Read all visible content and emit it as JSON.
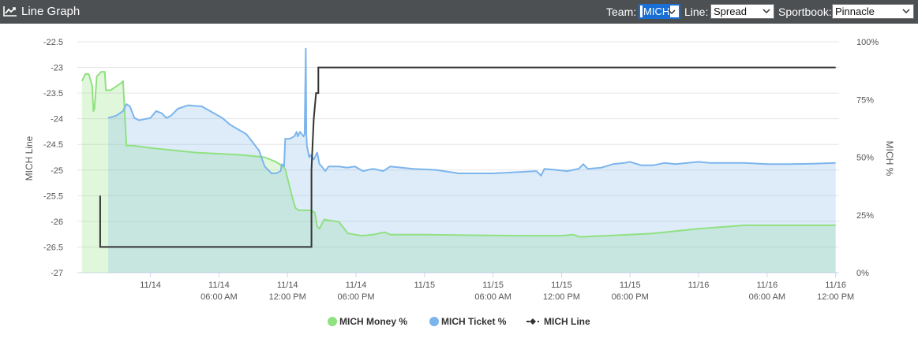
{
  "header": {
    "title": "Line Graph",
    "team_label": "Team:",
    "team_value": "MICH",
    "line_label": "Line:",
    "line_value": "Spread",
    "sportbook_label": "Sportbook:",
    "sportbook_value": "Pinnacle"
  },
  "colors": {
    "header_bg": "#4d5053",
    "money": "#90e180",
    "ticket": "#7cb5ec",
    "line": "#333333"
  },
  "chart_data": {
    "type": "line",
    "title": "",
    "ylabel_left": "MICH Line",
    "ylabel_right": "MICH %",
    "ylim_left": [
      -27,
      -22.5
    ],
    "ylim_right": [
      0,
      100
    ],
    "left_ticks": [
      "-22.5",
      "-23",
      "-23.5",
      "-24",
      "-24.5",
      "-25",
      "-25.5",
      "-26",
      "-26.5",
      "-27"
    ],
    "right_ticks": [
      "100%",
      "75%",
      "50%",
      "25%",
      "0%"
    ],
    "x_ticks": [
      {
        "line1": "11/14",
        "line2": "",
        "t": 6
      },
      {
        "line1": "11/14",
        "line2": "06:00 AM",
        "t": 12
      },
      {
        "line1": "11/14",
        "line2": "12:00 PM",
        "t": 18
      },
      {
        "line1": "11/14",
        "line2": "06:00 PM",
        "t": 24
      },
      {
        "line1": "11/15",
        "line2": "",
        "t": 30
      },
      {
        "line1": "11/15",
        "line2": "06:00 AM",
        "t": 36
      },
      {
        "line1": "11/15",
        "line2": "12:00 PM",
        "t": 42
      },
      {
        "line1": "11/15",
        "line2": "06:00 PM",
        "t": 48
      },
      {
        "line1": "11/16",
        "line2": "",
        "t": 54
      },
      {
        "line1": "11/16",
        "line2": "06:00 AM",
        "t": 60
      },
      {
        "line1": "11/16",
        "line2": "12:00 PM",
        "t": 66
      }
    ],
    "xlim": [
      -0.4,
      66.3
    ],
    "grid": true,
    "legend_position": "bottom-center",
    "series": [
      {
        "name": "MICH Money %",
        "axis": "right",
        "style": "area",
        "points": [
          [
            0.0,
            83
          ],
          [
            0.3,
            86
          ],
          [
            0.6,
            86
          ],
          [
            0.9,
            81
          ],
          [
            1.0,
            70
          ],
          [
            1.1,
            71
          ],
          [
            1.3,
            85
          ],
          [
            1.7,
            87
          ],
          [
            2.0,
            87
          ],
          [
            2.1,
            79
          ],
          [
            2.5,
            79
          ],
          [
            3.4,
            82
          ],
          [
            3.6,
            83
          ],
          [
            3.9,
            55
          ],
          [
            4.5,
            55
          ],
          [
            6,
            54
          ],
          [
            10,
            52
          ],
          [
            14,
            51
          ],
          [
            16,
            50
          ],
          [
            17,
            48
          ],
          [
            17.6,
            46
          ],
          [
            17.8,
            45
          ],
          [
            18.4,
            33
          ],
          [
            18.7,
            28
          ],
          [
            19,
            27
          ],
          [
            20,
            27
          ],
          [
            20.4,
            26
          ],
          [
            20.6,
            20
          ],
          [
            20.8,
            19
          ],
          [
            21.2,
            23
          ],
          [
            22.5,
            22
          ],
          [
            23.3,
            17
          ],
          [
            24.5,
            16
          ],
          [
            25.5,
            16.5
          ],
          [
            26.5,
            17.5
          ],
          [
            27,
            16.5
          ],
          [
            30,
            16.5
          ],
          [
            34,
            16.2
          ],
          [
            38,
            16
          ],
          [
            42,
            16
          ],
          [
            43,
            16.5
          ],
          [
            43.6,
            15.5
          ],
          [
            46,
            16
          ],
          [
            50,
            17
          ],
          [
            54,
            19
          ],
          [
            58,
            20.5
          ],
          [
            62,
            20.5
          ],
          [
            66,
            20.5
          ]
        ]
      },
      {
        "name": "MICH Ticket %",
        "axis": "right",
        "style": "area",
        "points": [
          [
            2.3,
            67
          ],
          [
            3,
            68
          ],
          [
            3.6,
            70
          ],
          [
            3.9,
            73
          ],
          [
            4.2,
            72
          ],
          [
            4.6,
            67
          ],
          [
            5,
            66
          ],
          [
            6,
            67
          ],
          [
            6.5,
            70
          ],
          [
            7,
            69
          ],
          [
            7.4,
            67
          ],
          [
            7.8,
            68
          ],
          [
            8.4,
            71
          ],
          [
            9.3,
            72.5
          ],
          [
            10.5,
            72
          ],
          [
            12.3,
            67
          ],
          [
            13,
            64
          ],
          [
            14.4,
            60
          ],
          [
            15.5,
            53
          ],
          [
            16,
            46
          ],
          [
            16.6,
            43
          ],
          [
            17,
            43
          ],
          [
            17.4,
            44
          ],
          [
            17.5,
            47
          ],
          [
            17.7,
            46
          ],
          [
            17.8,
            58
          ],
          [
            18.2,
            58
          ],
          [
            18.6,
            59
          ],
          [
            18.8,
            61
          ],
          [
            18.9,
            59
          ],
          [
            19.1,
            61
          ],
          [
            19.4,
            59
          ],
          [
            19.5,
            60
          ],
          [
            19.6,
            97
          ],
          [
            19.65,
            60
          ],
          [
            19.7,
            55
          ],
          [
            19.9,
            50
          ],
          [
            20,
            51
          ],
          [
            20.3,
            49
          ],
          [
            20.6,
            52
          ],
          [
            20.8,
            47
          ],
          [
            21,
            46
          ],
          [
            21.3,
            44
          ],
          [
            21.6,
            46
          ],
          [
            22.5,
            46
          ],
          [
            23.2,
            45.5
          ],
          [
            23.9,
            46
          ],
          [
            24.6,
            44
          ],
          [
            25.5,
            45
          ],
          [
            26.4,
            44
          ],
          [
            27,
            46
          ],
          [
            28,
            45.5
          ],
          [
            29,
            45
          ],
          [
            31,
            44.5
          ],
          [
            33,
            43
          ],
          [
            36,
            43
          ],
          [
            38,
            43.5
          ],
          [
            39.8,
            44
          ],
          [
            40.2,
            42
          ],
          [
            40.5,
            45
          ],
          [
            41.5,
            44.5
          ],
          [
            42.5,
            44
          ],
          [
            43.5,
            45
          ],
          [
            43.9,
            47
          ],
          [
            44.3,
            45
          ],
          [
            45.5,
            45.5
          ],
          [
            46.5,
            47
          ],
          [
            47.5,
            47.5
          ],
          [
            48,
            48
          ],
          [
            49,
            46.5
          ],
          [
            50,
            46.5
          ],
          [
            51,
            47.5
          ],
          [
            52,
            47
          ],
          [
            53,
            47.5
          ],
          [
            54,
            48
          ],
          [
            55,
            47.5
          ],
          [
            58,
            47.5
          ],
          [
            60,
            47
          ],
          [
            62,
            47
          ],
          [
            64,
            47.2
          ],
          [
            66,
            47.5
          ]
        ]
      },
      {
        "name": "MICH Line",
        "axis": "left",
        "style": "step",
        "points": [
          [
            1.6,
            -25.5
          ],
          [
            1.6,
            -26.5
          ],
          [
            20.1,
            -26.5
          ],
          [
            20.1,
            -25
          ],
          [
            20.2,
            -24.5
          ],
          [
            20.3,
            -24
          ],
          [
            20.5,
            -23.5
          ],
          [
            20.7,
            -23.5
          ],
          [
            20.7,
            -23
          ],
          [
            66,
            -23
          ]
        ]
      }
    ]
  }
}
